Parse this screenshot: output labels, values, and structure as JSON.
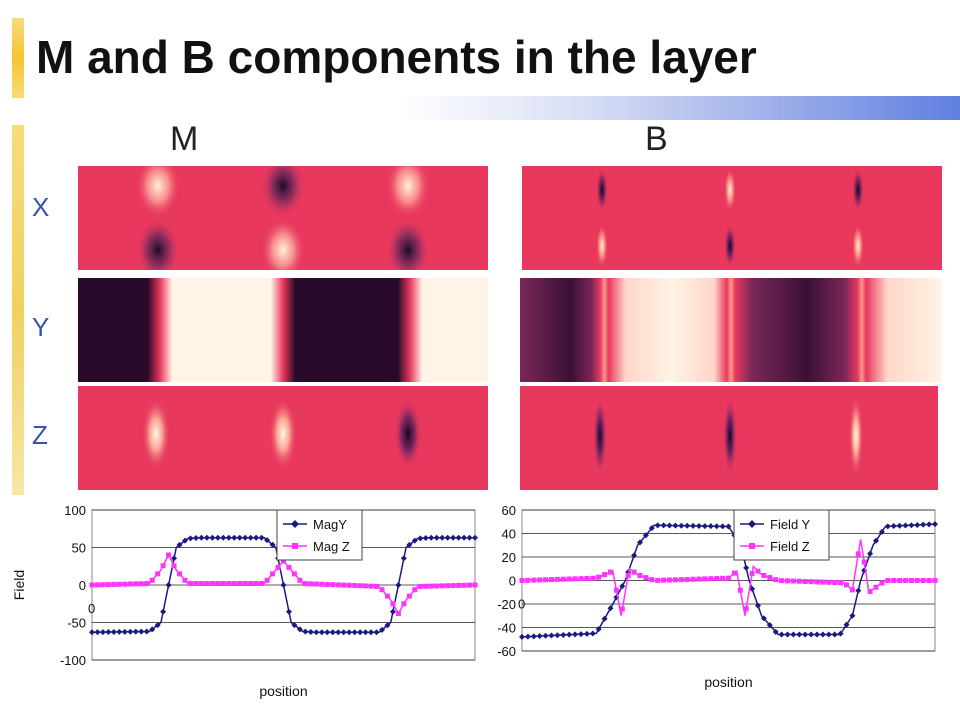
{
  "slide": {
    "title": "M and B components in the layer",
    "column_headers": [
      "M",
      "B"
    ],
    "row_labels": [
      "X",
      "Y",
      "Z"
    ]
  },
  "colors": {
    "accent_blue": "#3556a6",
    "series_y": "#1a1a80",
    "series_z": "#ff33ff"
  },
  "chart_data": [
    {
      "type": "line",
      "title": "",
      "xlabel": "position",
      "ylabel": "Field",
      "ylim": [
        -100,
        100
      ],
      "yticks": [
        100,
        50,
        0,
        -50,
        -100
      ],
      "x_origin_label": "0",
      "grid": true,
      "legend": "top-right",
      "series": [
        {
          "name": "MagY",
          "marker": "diamond",
          "color": "#1a1a80",
          "x": [
            0,
            15,
            18,
            20,
            22,
            25,
            28,
            45,
            48,
            50,
            52,
            55,
            58,
            75,
            78,
            80,
            82,
            85,
            88,
            100
          ],
          "values": [
            -63,
            -62,
            -50,
            0,
            50,
            62,
            63,
            63,
            50,
            0,
            -50,
            -62,
            -63,
            -63,
            -50,
            0,
            50,
            62,
            63,
            63
          ]
        },
        {
          "name": "Mag Z",
          "marker": "square",
          "color": "#ff33ff",
          "x": [
            0,
            15,
            18,
            20,
            22,
            25,
            45,
            48,
            50,
            52,
            55,
            75,
            78,
            80,
            82,
            85,
            100
          ],
          "values": [
            0,
            2,
            20,
            40,
            20,
            2,
            2,
            20,
            32,
            20,
            2,
            -2,
            -20,
            -38,
            -20,
            -2,
            0
          ]
        }
      ]
    },
    {
      "type": "line",
      "title": "",
      "xlabel": "position",
      "ylabel": "",
      "ylim": [
        -60,
        60
      ],
      "yticks": [
        60,
        40,
        20,
        0,
        -20,
        -40,
        -60
      ],
      "x_origin_label": "0",
      "grid": true,
      "legend": "top-right",
      "series": [
        {
          "name": "Field Y",
          "marker": "diamond",
          "color": "#1a1a80",
          "x": [
            0,
            18,
            22,
            25,
            28,
            32,
            50,
            53,
            55,
            58,
            62,
            77,
            80,
            82,
            85,
            88,
            100
          ],
          "values": [
            -48,
            -45,
            -20,
            0,
            30,
            47,
            46,
            30,
            0,
            -30,
            -46,
            -46,
            -30,
            0,
            30,
            46,
            48
          ]
        },
        {
          "name": "Field Z",
          "marker": "square",
          "color": "#ff33ff",
          "x": [
            0,
            18,
            22,
            24,
            26,
            28,
            32,
            50,
            52,
            54,
            56,
            58,
            62,
            78,
            80,
            82,
            84,
            86,
            88,
            100
          ],
          "values": [
            0,
            2,
            8,
            -30,
            10,
            5,
            0,
            2,
            8,
            -30,
            12,
            5,
            0,
            -2,
            -8,
            35,
            -10,
            -5,
            0,
            0
          ]
        }
      ]
    }
  ]
}
